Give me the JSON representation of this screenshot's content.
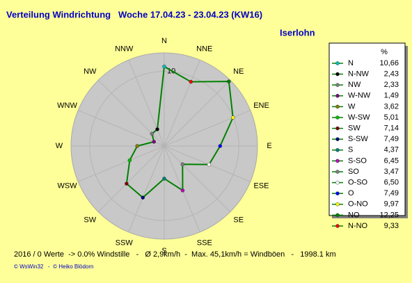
{
  "chart_data": {
    "type": "radar",
    "title": "Verteilung Windrichtung   Woche 17.04.23 - 23.04.23 (KW16)",
    "subtitle": "Iserlohn",
    "direction_labels": [
      "N",
      "NNE",
      "NE",
      "ENE",
      "E",
      "ESE",
      "SE",
      "SSE",
      "S",
      "SSW",
      "SW",
      "WSW",
      "W",
      "WNW",
      "NW",
      "NNW"
    ],
    "rlim": [
      0,
      12.5
    ],
    "rticks": [
      10
    ],
    "legend_title": "%",
    "categories": [
      "N",
      "N-NW",
      "NW",
      "W-NW",
      "W",
      "W-SW",
      "SW",
      "S-SW",
      "S",
      "S-SO",
      "SO",
      "O-SO",
      "O",
      "O-NO",
      "NO",
      "N-NO"
    ],
    "values": [
      10.66,
      2.43,
      2.33,
      1.49,
      3.62,
      5.01,
      7.14,
      7.49,
      4.37,
      6.45,
      3.47,
      6.5,
      7.49,
      9.97,
      12.25,
      9.33
    ],
    "value_labels": [
      "10,66",
      "2,43",
      "2,33",
      "1,49",
      "3,62",
      "5,01",
      "7,14",
      "7,49",
      "4,37",
      "6,45",
      "3,47",
      "6,50",
      "7,49",
      "9,97",
      "12,25",
      "9,33"
    ],
    "colors": [
      "#00c0c0",
      "#000000",
      "#808080",
      "#800080",
      "#808000",
      "#00c000",
      "#800000",
      "#000080",
      "#008080",
      "#c000c0",
      "#808080",
      "#ffffff",
      "#0000ff",
      "#ffff00",
      "#008000",
      "#ff0000"
    ],
    "line_color": "#008000"
  },
  "footer": {
    "stats": "2016 / 0 Werte  -> 0.0% Windstille   -   Ø 2,9km/h  -  Max. 45,1km/h = Windböen   -   1998.1 km",
    "credits": "© WsWin32   -  © Heiko Blödorn"
  }
}
